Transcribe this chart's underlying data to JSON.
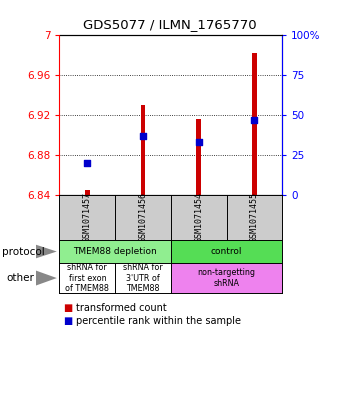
{
  "title": "GDS5077 / ILMN_1765770",
  "samples": [
    "GSM1071457",
    "GSM1071456",
    "GSM1071454",
    "GSM1071455"
  ],
  "red_values": [
    6.845,
    6.93,
    6.916,
    6.982
  ],
  "blue_values": [
    20.0,
    37.0,
    33.0,
    47.0
  ],
  "ylim_left": [
    6.84,
    7.0
  ],
  "ylim_right": [
    0,
    100
  ],
  "yticks_left": [
    6.84,
    6.88,
    6.92,
    6.96,
    7.0
  ],
  "yticks_right": [
    0,
    25,
    50,
    75,
    100
  ],
  "ytick_labels_left": [
    "6.84",
    "6.88",
    "6.92",
    "6.96",
    "7"
  ],
  "ytick_labels_right": [
    "0",
    "25",
    "50",
    "75",
    "100%"
  ],
  "protocol_groups": [
    {
      "label": "TMEM88 depletion",
      "cols": [
        0,
        1
      ],
      "color": "#90EE90"
    },
    {
      "label": "control",
      "cols": [
        2,
        3
      ],
      "color": "#55DD55"
    }
  ],
  "other_groups": [
    {
      "label": "shRNA for\nfirst exon\nof TMEM88",
      "cols": [
        0
      ],
      "color": "#FFFFFF"
    },
    {
      "label": "shRNA for\n3'UTR of\nTMEM88",
      "cols": [
        1
      ],
      "color": "#FFFFFF"
    },
    {
      "label": "non-targetting\nshRNA",
      "cols": [
        2,
        3
      ],
      "color": "#EE82EE"
    }
  ],
  "bar_color": "#CC0000",
  "dot_color": "#0000CC",
  "bar_width": 0.08,
  "dot_size": 25,
  "background_color": "#FFFFFF",
  "sample_bg_color": "#CCCCCC"
}
